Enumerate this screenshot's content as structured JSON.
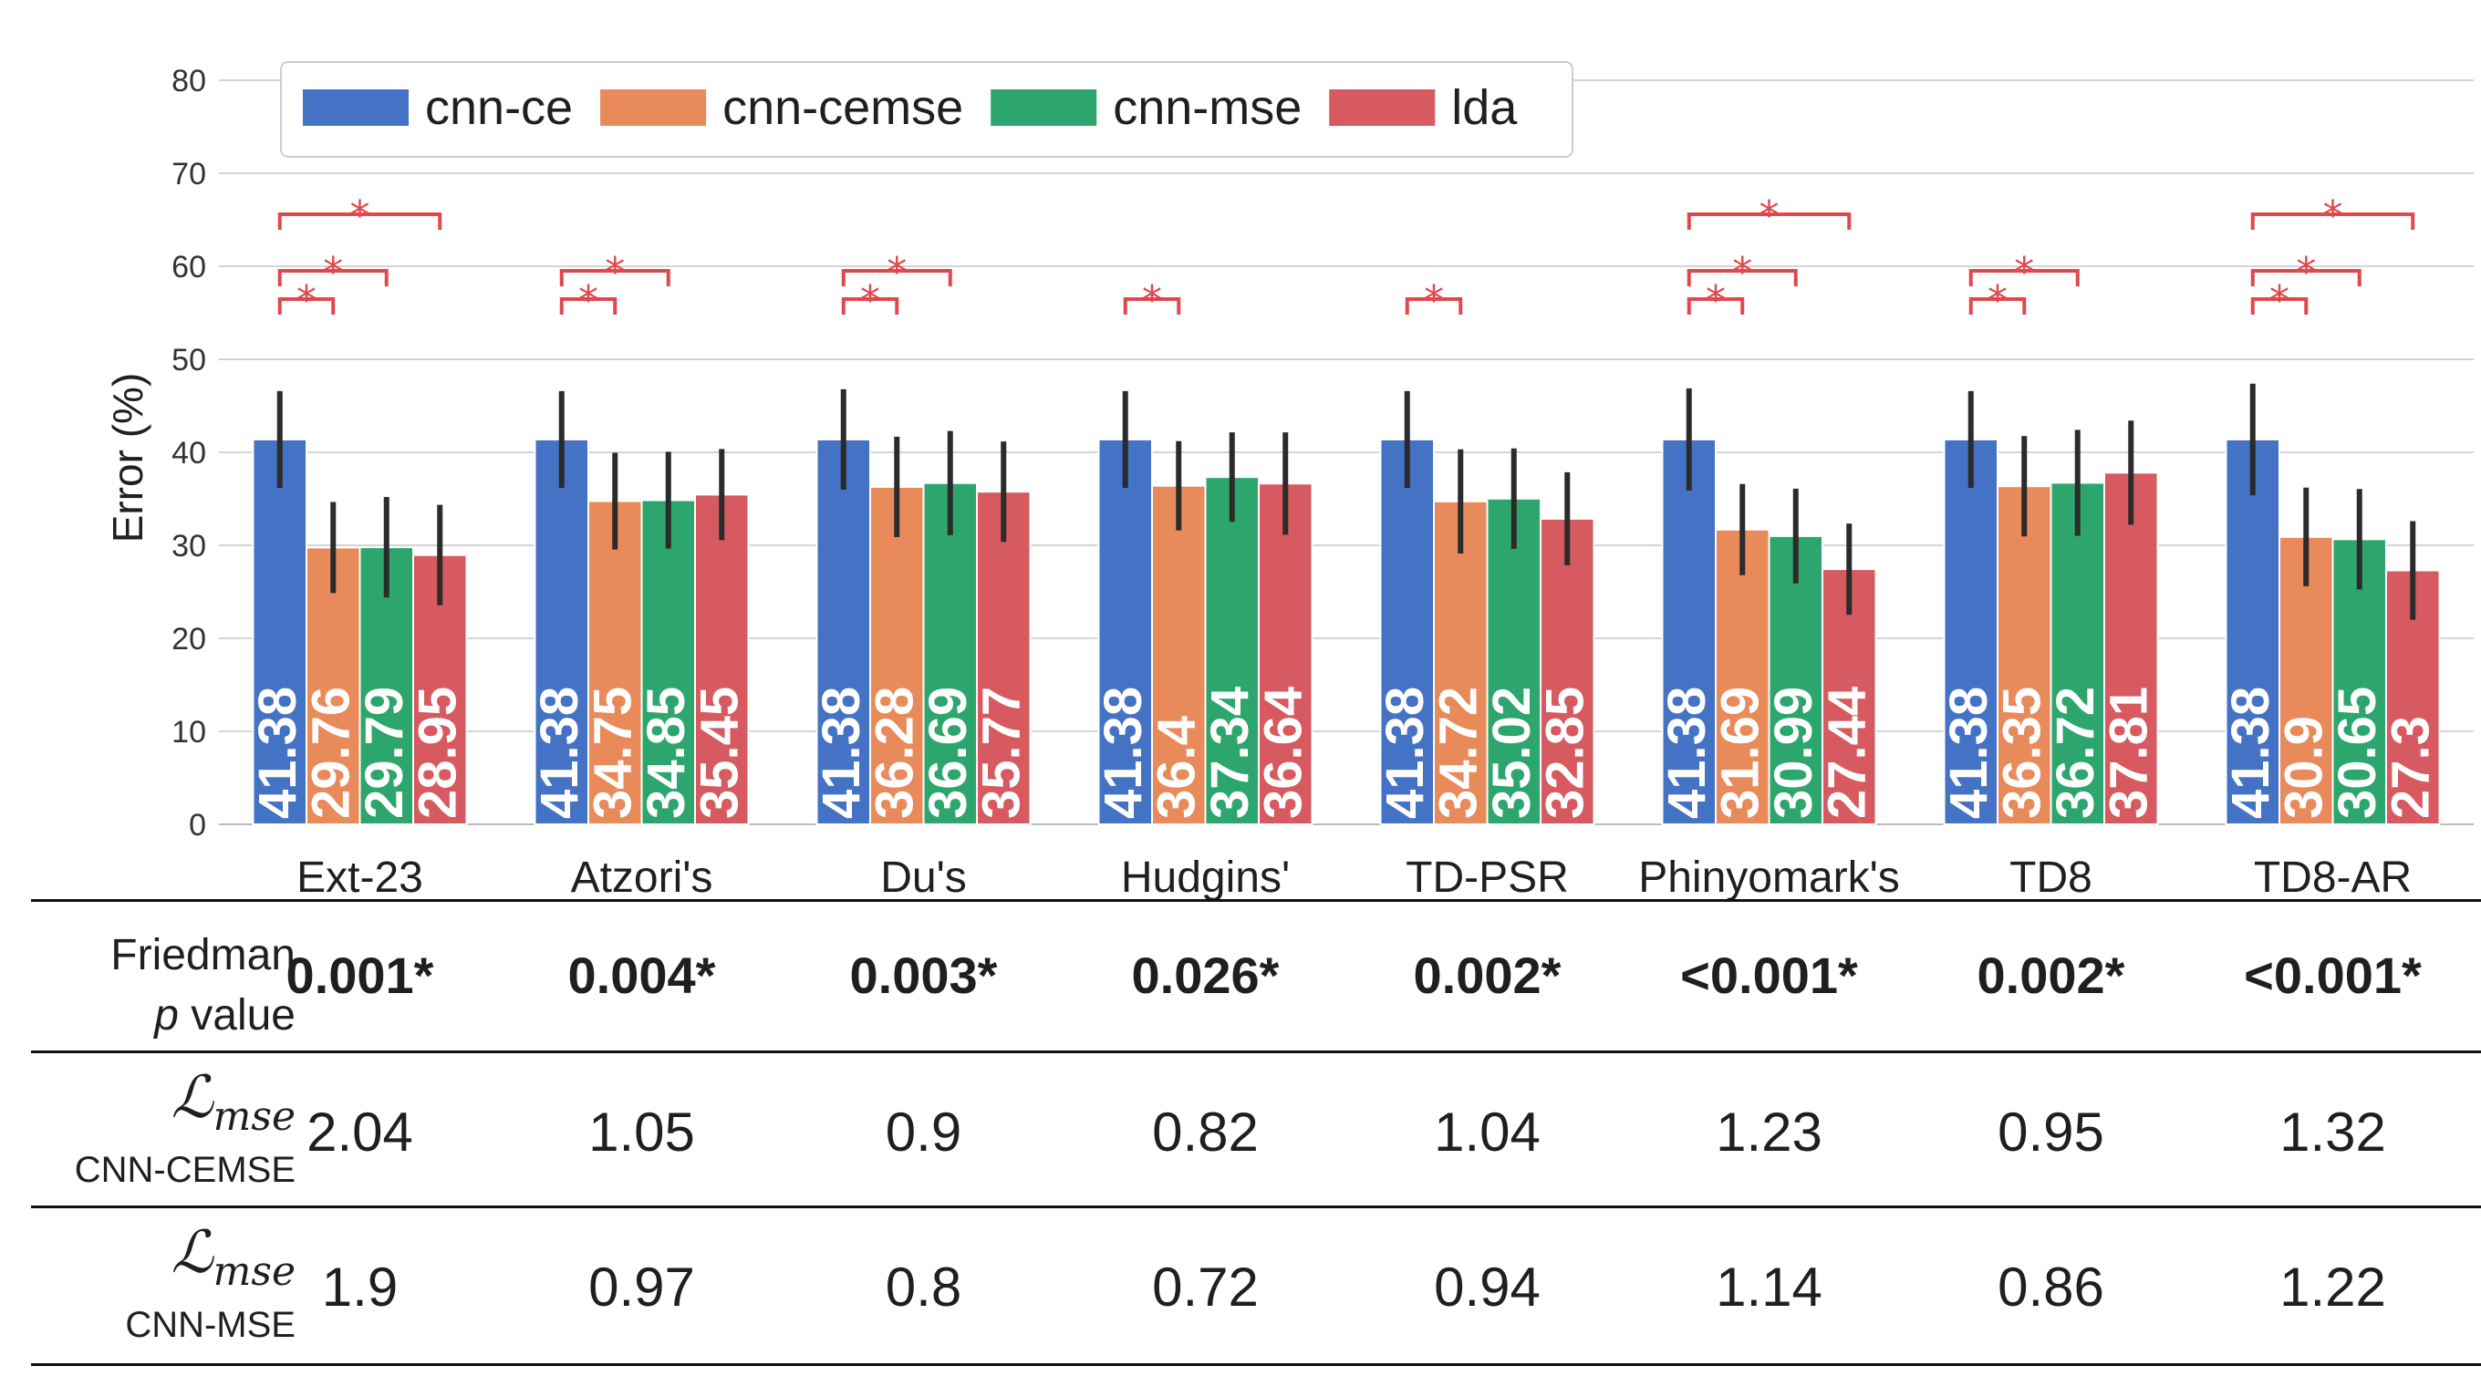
{
  "chart_data": {
    "type": "bar",
    "ylabel": "Error (%)",
    "ylim": [
      0,
      80
    ],
    "yticks": [
      "0",
      "10",
      "20",
      "30",
      "40",
      "50",
      "60",
      "70",
      "80"
    ],
    "categories": [
      "Ext-23",
      "Atzori's",
      "Du's",
      "Hudgins'",
      "TD-PSR",
      "Phinyomark's",
      "TD8",
      "TD8-AR"
    ],
    "series": [
      {
        "name": "cnn-ce",
        "color": "#4472c4",
        "values": [
          41.38,
          41.38,
          41.38,
          41.38,
          41.38,
          41.38,
          41.38,
          41.38
        ],
        "labels": [
          "41.38",
          "41.38",
          "41.38",
          "41.38",
          "41.38",
          "41.38",
          "41.38",
          "41.38"
        ],
        "err": [
          5.2,
          5.2,
          5.4,
          5.2,
          5.2,
          5.5,
          5.2,
          6.0
        ]
      },
      {
        "name": "cnn-cemse",
        "color": "#e88a5a",
        "values": [
          29.76,
          34.75,
          36.28,
          36.4,
          34.72,
          31.69,
          36.35,
          30.9
        ],
        "labels": [
          "29.76",
          "34.75",
          "36.28",
          "36.4",
          "34.72",
          "31.69",
          "36.35",
          "30.9"
        ],
        "err": [
          4.9,
          5.2,
          5.4,
          4.8,
          5.6,
          4.9,
          5.4,
          5.3
        ]
      },
      {
        "name": "cnn-mse",
        "color": "#2ca66c",
        "values": [
          29.79,
          34.85,
          36.69,
          37.34,
          35.02,
          30.99,
          36.72,
          30.65
        ],
        "labels": [
          "29.79",
          "34.85",
          "36.69",
          "37.34",
          "35.02",
          "30.99",
          "36.72",
          "30.65"
        ],
        "err": [
          5.4,
          5.2,
          5.6,
          4.8,
          5.4,
          5.1,
          5.7,
          5.4
        ]
      },
      {
        "name": "lda",
        "color": "#d65a5f",
        "values": [
          28.95,
          35.45,
          35.77,
          36.64,
          32.85,
          27.44,
          37.81,
          27.3
        ],
        "labels": [
          "28.95",
          "35.45",
          "35.77",
          "36.64",
          "32.85",
          "27.44",
          "37.81",
          "27.3"
        ],
        "err": [
          5.4,
          4.9,
          5.4,
          5.5,
          5.0,
          4.9,
          5.6,
          5.3
        ]
      }
    ],
    "significance": [
      {
        "category": "Ext-23",
        "pairs": [
          [
            "cnn-ce",
            "cnn-cemse"
          ],
          [
            "cnn-ce",
            "cnn-mse"
          ],
          [
            "cnn-ce",
            "lda"
          ]
        ]
      },
      {
        "category": "Atzori's",
        "pairs": [
          [
            "cnn-ce",
            "cnn-cemse"
          ],
          [
            "cnn-ce",
            "cnn-mse"
          ]
        ]
      },
      {
        "category": "Du's",
        "pairs": [
          [
            "cnn-ce",
            "cnn-cemse"
          ],
          [
            "cnn-ce",
            "cnn-mse"
          ]
        ]
      },
      {
        "category": "Hudgins'",
        "pairs": [
          [
            "cnn-ce",
            "cnn-cemse"
          ]
        ]
      },
      {
        "category": "TD-PSR",
        "pairs": [
          [
            "cnn-ce",
            "cnn-cemse"
          ]
        ]
      },
      {
        "category": "Phinyomark's",
        "pairs": [
          [
            "cnn-ce",
            "cnn-cemse"
          ],
          [
            "cnn-ce",
            "cnn-mse"
          ],
          [
            "cnn-ce",
            "lda"
          ]
        ]
      },
      {
        "category": "TD8",
        "pairs": [
          [
            "cnn-ce",
            "cnn-cemse"
          ],
          [
            "cnn-ce",
            "cnn-mse"
          ]
        ]
      },
      {
        "category": "TD8-AR",
        "pairs": [
          [
            "cnn-ce",
            "cnn-cemse"
          ],
          [
            "cnn-ce",
            "cnn-mse"
          ],
          [
            "cnn-ce",
            "lda"
          ]
        ]
      }
    ],
    "star_symbol": "*",
    "legend_position": "top-left",
    "grid": true
  },
  "table": {
    "friedman": {
      "label_line1": "Friedman",
      "label_p": "p",
      "label_rest": " value",
      "values": [
        "0.001*",
        "0.004*",
        "0.003*",
        "0.026*",
        "0.002*",
        "<0.001*",
        "0.002*",
        "<0.001*"
      ]
    },
    "cemse": {
      "symbol": "ℒ",
      "subscript": "mse",
      "sublabel": "CNN-CEMSE",
      "values": [
        "2.04",
        "1.05",
        "0.9",
        "0.82",
        "1.04",
        "1.23",
        "0.95",
        "1.32"
      ]
    },
    "mse": {
      "symbol": "ℒ",
      "subscript": "mse",
      "sublabel": "CNN-MSE",
      "values": [
        "1.9",
        "0.97",
        "0.8",
        "0.72",
        "0.94",
        "1.14",
        "0.86",
        "1.22"
      ]
    }
  }
}
